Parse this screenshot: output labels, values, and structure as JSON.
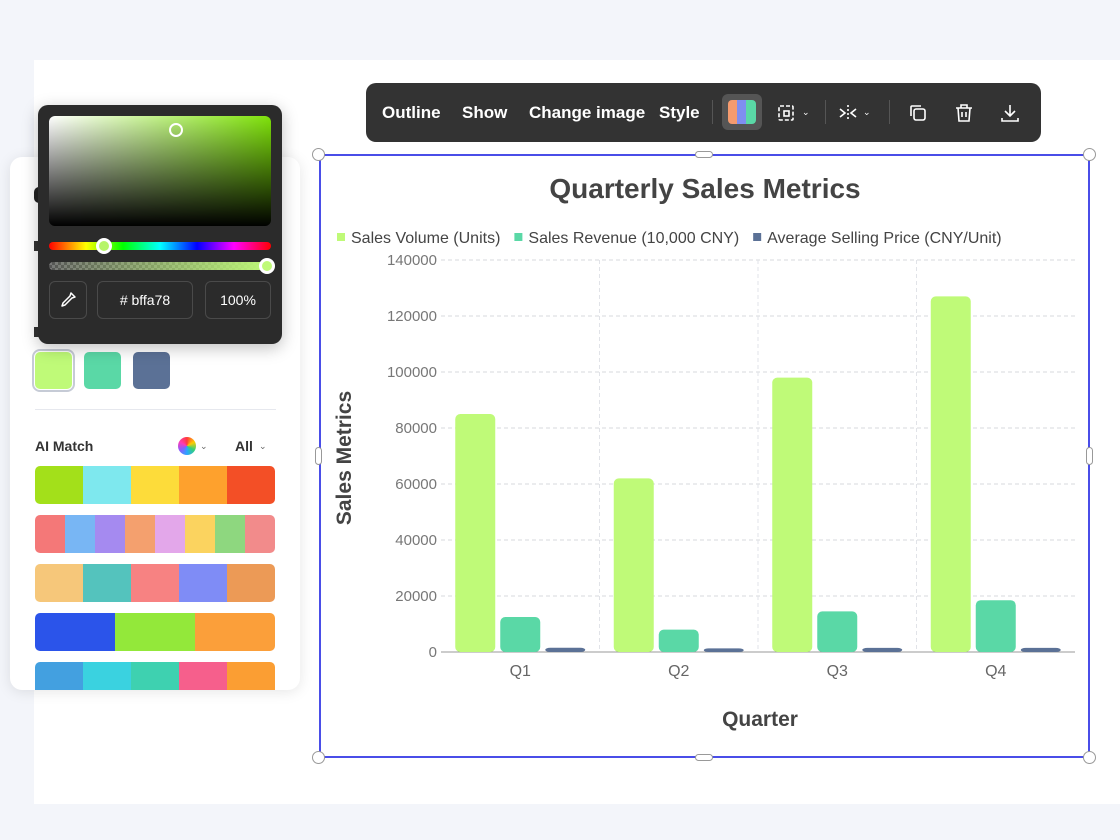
{
  "toolbar": {
    "outline": "Outline",
    "show": "Show",
    "change_image": "Change image",
    "style": "Style",
    "icons": [
      "palette-icon",
      "layout-icon",
      "flip-icon",
      "copy-icon",
      "delete-icon",
      "download-icon"
    ]
  },
  "picker": {
    "hex": "# bffa78",
    "opacity": "100%",
    "selected_color": "#bffa78"
  },
  "side_panel": {
    "current_colors": [
      "#bffa78",
      "#5ad8a6",
      "#5b7196"
    ],
    "ai_match_label": "AI Match",
    "filter_label": "All",
    "palettes": [
      [
        "#a3e01a",
        "#7ee8ee",
        "#fddc3a",
        "#fea12d",
        "#f34f26"
      ],
      [
        "#f47878",
        "#78b6f4",
        "#a58af0",
        "#f4a06e",
        "#e3a7ea",
        "#fbd35f",
        "#8ed77f",
        "#f28b8b"
      ],
      [
        "#f6c77a",
        "#54c3bd",
        "#f78282",
        "#7f8cf6",
        "#ec9a56"
      ],
      [
        "#2b54ea",
        "#93e83a",
        "#fb9f3a"
      ],
      [
        "#43a0e0",
        "#3ad2e0",
        "#3ed1b0",
        "#f65f8c",
        "#fb9e33"
      ]
    ]
  },
  "chart_data": {
    "type": "bar",
    "title": "Quarterly Sales Metrics",
    "xlabel": "Quarter",
    "ylabel": "Sales Metrics",
    "categories": [
      "Q1",
      "Q2",
      "Q3",
      "Q4"
    ],
    "ylim": [
      0,
      140000
    ],
    "yticks": [
      0,
      20000,
      40000,
      60000,
      80000,
      100000,
      120000,
      140000
    ],
    "grid": true,
    "legend": "top",
    "series": [
      {
        "name": "Sales Volume (Units)",
        "color": "#bffa78",
        "values": [
          85000,
          62000,
          98000,
          127000
        ]
      },
      {
        "name": "Sales Revenue (10,000 CNY)",
        "color": "#5ad8a6",
        "values": [
          12500,
          8000,
          14500,
          18500
        ]
      },
      {
        "name": "Average Selling Price (CNY/Unit)",
        "color": "#5b7196",
        "values": [
          1500,
          1300,
          1480,
          1460
        ]
      }
    ]
  }
}
